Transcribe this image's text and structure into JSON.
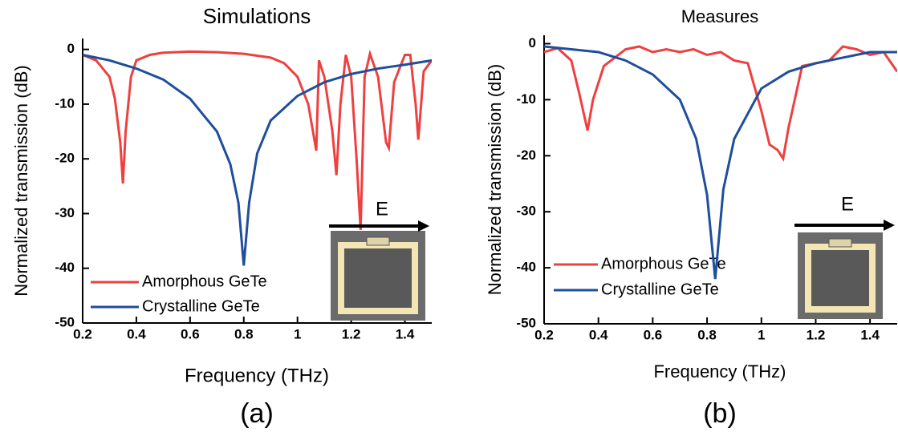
{
  "chart_data": [
    {
      "type": "line",
      "title": "Simulations",
      "x_label": "Frequency (THz)",
      "y_label": "Normalized transmission (dB)",
      "caption": "(a)",
      "annotation": "E",
      "xlim": [
        0.2,
        1.5
      ],
      "ylim": [
        -50,
        2
      ],
      "xticks": [
        0.2,
        0.4,
        0.6,
        0.8,
        1.0,
        1.2,
        1.4
      ],
      "yticks": [
        0,
        -10,
        -20,
        -30,
        -40,
        -50
      ],
      "series": [
        {
          "name": "Amorphous GeTe",
          "color": "#ef4040",
          "x": [
            0.2,
            0.25,
            0.3,
            0.32,
            0.34,
            0.35,
            0.36,
            0.38,
            0.4,
            0.45,
            0.5,
            0.6,
            0.7,
            0.8,
            0.9,
            0.95,
            1.0,
            1.04,
            1.07,
            1.08,
            1.1,
            1.13,
            1.145,
            1.16,
            1.18,
            1.2,
            1.22,
            1.235,
            1.25,
            1.27,
            1.3,
            1.33,
            1.34,
            1.36,
            1.4,
            1.42,
            1.44,
            1.45,
            1.47,
            1.5
          ],
          "values": [
            -1,
            -2,
            -5,
            -9,
            -17,
            -24.5,
            -15,
            -5,
            -2,
            -1,
            -0.6,
            -0.4,
            -0.5,
            -0.8,
            -1.5,
            -2.5,
            -5,
            -10,
            -18.5,
            -2,
            -5,
            -15,
            -23,
            -10,
            -1,
            -5,
            -20,
            -33,
            -5,
            -0.8,
            -5,
            -17,
            -18,
            -6,
            -1,
            -1,
            -10,
            -16.5,
            -4,
            -2
          ]
        },
        {
          "name": "Crystalline GeTe",
          "color": "#1f4e9c",
          "x": [
            0.2,
            0.3,
            0.4,
            0.5,
            0.6,
            0.7,
            0.75,
            0.78,
            0.8,
            0.82,
            0.85,
            0.9,
            1.0,
            1.1,
            1.2,
            1.3,
            1.4,
            1.5
          ],
          "values": [
            -1,
            -2,
            -3.5,
            -5.5,
            -9,
            -15,
            -21,
            -28,
            -39.5,
            -28,
            -19,
            -13,
            -8.5,
            -6,
            -4.5,
            -3.5,
            -2.8,
            -2
          ]
        }
      ]
    },
    {
      "type": "line",
      "title": "Measures",
      "x_label": "Frequency (THz)",
      "y_label": "Normalized transmission (dB)",
      "caption": "(b)",
      "annotation": "E",
      "xlim": [
        0.2,
        1.5
      ],
      "ylim": [
        -50,
        1.5
      ],
      "xticks": [
        0.2,
        0.4,
        0.6,
        0.8,
        1.0,
        1.2,
        1.4
      ],
      "yticks": [
        0,
        -10,
        -20,
        -30,
        -40,
        -50
      ],
      "series": [
        {
          "name": "Amorphous GeTe",
          "color": "#ef4040",
          "x": [
            0.2,
            0.25,
            0.3,
            0.33,
            0.36,
            0.38,
            0.42,
            0.5,
            0.55,
            0.6,
            0.65,
            0.7,
            0.75,
            0.8,
            0.85,
            0.9,
            0.95,
            1.0,
            1.03,
            1.06,
            1.08,
            1.1,
            1.15,
            1.2,
            1.25,
            1.3,
            1.35,
            1.4,
            1.45,
            1.5
          ],
          "values": [
            -1.5,
            -0.8,
            -3,
            -9,
            -15.5,
            -10,
            -4,
            -1,
            -0.5,
            -1.5,
            -1,
            -1.5,
            -1,
            -2,
            -1.5,
            -3,
            -3.5,
            -12,
            -18,
            -19,
            -20.5,
            -15,
            -4,
            -3.5,
            -3,
            -0.5,
            -1,
            -2,
            -1.5,
            -5
          ]
        },
        {
          "name": "Crystalline GeTe",
          "color": "#1f4e9c",
          "x": [
            0.2,
            0.3,
            0.4,
            0.5,
            0.6,
            0.7,
            0.76,
            0.8,
            0.83,
            0.86,
            0.9,
            1.0,
            1.1,
            1.2,
            1.3,
            1.4,
            1.5
          ],
          "values": [
            -0.5,
            -1,
            -1.5,
            -3,
            -5.5,
            -10,
            -17,
            -27,
            -42,
            -26,
            -17,
            -8,
            -5,
            -3.5,
            -2.5,
            -1.5,
            -1.5
          ]
        }
      ]
    }
  ]
}
